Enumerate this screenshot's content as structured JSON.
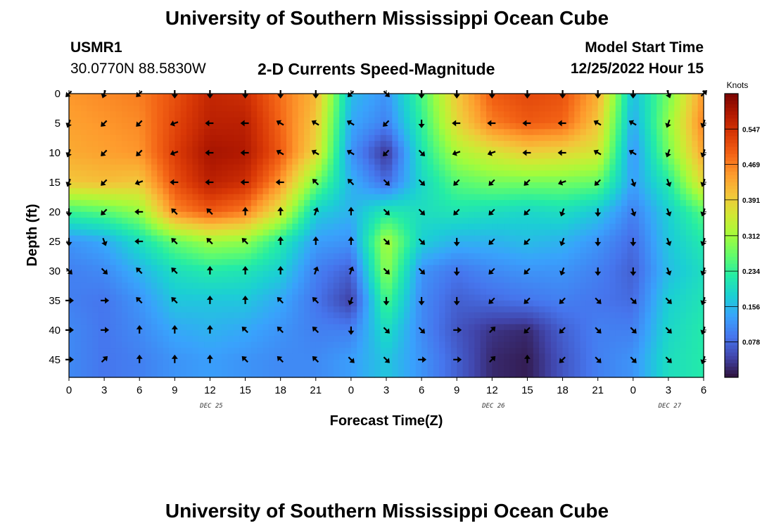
{
  "header": {
    "title": "University of Southern Mississippi Ocean Cube",
    "station_id": "USMR1",
    "station_coords": "30.0770N  88.5830W",
    "plot_subtitle": "2-D Currents Speed-Magnitude",
    "model_start_label": "Model Start Time",
    "model_start_value": "12/25/2022 Hour 15"
  },
  "footer": {
    "title": "University of Southern Mississippi Ocean Cube"
  },
  "chart_data": {
    "type": "heatmap",
    "xlabel": "Forecast Time(Z)",
    "ylabel": "Depth (ft)",
    "x_tick_labels": [
      "0",
      "3",
      "6",
      "9",
      "12",
      "15",
      "18",
      "21",
      "0",
      "3",
      "6",
      "9",
      "12",
      "15",
      "18",
      "21",
      "0",
      "3",
      "6"
    ],
    "date_labels": [
      {
        "label": "DEC 25",
        "at_tick": 4
      },
      {
        "label": "DEC 26",
        "at_tick": 12
      },
      {
        "label": "DEC 27",
        "at_tick": 17
      }
    ],
    "y_ticks": [
      0,
      5,
      10,
      15,
      20,
      25,
      30,
      35,
      40,
      45
    ],
    "depth_range": [
      0,
      48
    ],
    "y_reversed": true,
    "colorbar": {
      "units": "Knots",
      "range": [
        0,
        0.625
      ],
      "tick_values": [
        0.078,
        0.156,
        0.234,
        0.312,
        0.391,
        0.469,
        0.547
      ],
      "tick_labels": [
        "0.078",
        "0.156",
        "0.234",
        "0.312",
        "0.391",
        "0.469",
        "0.547"
      ],
      "colormap": [
        "#30123b",
        "#4145ab",
        "#4675ed",
        "#39a2fc",
        "#1bcfd4",
        "#24eca6",
        "#61fc6c",
        "#a4fc3b",
        "#d1e834",
        "#f3c63a",
        "#fe9b2d",
        "#f36315",
        "#d93806",
        "#b11901",
        "#7a0402"
      ]
    },
    "grid": false,
    "speed_depths_ft": [
      0,
      5,
      10,
      15,
      20,
      25,
      30,
      35,
      40,
      45
    ],
    "speed_knots": [
      [
        0.45,
        0.46,
        0.47,
        0.51,
        0.56,
        0.55,
        0.48,
        0.42,
        0.16,
        0.12,
        0.25,
        0.4,
        0.5,
        0.52,
        0.51,
        0.43,
        0.16,
        0.28,
        0.45
      ],
      [
        0.44,
        0.45,
        0.46,
        0.52,
        0.57,
        0.57,
        0.49,
        0.4,
        0.14,
        0.1,
        0.23,
        0.38,
        0.47,
        0.5,
        0.49,
        0.4,
        0.14,
        0.3,
        0.47
      ],
      [
        0.43,
        0.44,
        0.45,
        0.53,
        0.59,
        0.58,
        0.5,
        0.38,
        0.12,
        0.03,
        0.21,
        0.32,
        0.36,
        0.39,
        0.38,
        0.36,
        0.12,
        0.28,
        0.44
      ],
      [
        0.4,
        0.41,
        0.4,
        0.51,
        0.57,
        0.55,
        0.45,
        0.28,
        0.15,
        0.08,
        0.19,
        0.26,
        0.28,
        0.28,
        0.28,
        0.27,
        0.13,
        0.22,
        0.38
      ],
      [
        0.24,
        0.26,
        0.3,
        0.46,
        0.5,
        0.47,
        0.36,
        0.18,
        0.15,
        0.22,
        0.2,
        0.21,
        0.2,
        0.19,
        0.2,
        0.17,
        0.1,
        0.18,
        0.26
      ],
      [
        0.12,
        0.14,
        0.2,
        0.27,
        0.31,
        0.3,
        0.22,
        0.13,
        0.12,
        0.32,
        0.18,
        0.15,
        0.15,
        0.16,
        0.15,
        0.12,
        0.08,
        0.17,
        0.22
      ],
      [
        0.1,
        0.11,
        0.15,
        0.2,
        0.22,
        0.21,
        0.18,
        0.1,
        0.07,
        0.3,
        0.12,
        0.09,
        0.11,
        0.12,
        0.12,
        0.1,
        0.07,
        0.16,
        0.2
      ],
      [
        0.1,
        0.09,
        0.12,
        0.17,
        0.17,
        0.17,
        0.14,
        0.09,
        0.04,
        0.25,
        0.11,
        0.07,
        0.08,
        0.09,
        0.1,
        0.09,
        0.08,
        0.18,
        0.21
      ],
      [
        0.11,
        0.09,
        0.11,
        0.14,
        0.15,
        0.14,
        0.12,
        0.1,
        0.1,
        0.2,
        0.11,
        0.06,
        0.03,
        0.02,
        0.07,
        0.1,
        0.1,
        0.19,
        0.22
      ],
      [
        0.11,
        0.09,
        0.1,
        0.12,
        0.13,
        0.12,
        0.11,
        0.11,
        0.13,
        0.17,
        0.12,
        0.07,
        0.02,
        0.01,
        0.06,
        0.1,
        0.12,
        0.2,
        0.22
      ]
    ],
    "direction_deg": [
      [
        225,
        200,
        225,
        180,
        180,
        180,
        180,
        180,
        225,
        135,
        180,
        180,
        180,
        180,
        180,
        180,
        180,
        160,
        45
      ],
      [
        200,
        225,
        225,
        250,
        270,
        270,
        300,
        300,
        300,
        225,
        180,
        270,
        270,
        270,
        270,
        300,
        300,
        200,
        200
      ],
      [
        200,
        225,
        225,
        250,
        270,
        270,
        300,
        300,
        300,
        225,
        135,
        250,
        250,
        270,
        270,
        300,
        300,
        200,
        200
      ],
      [
        200,
        225,
        250,
        270,
        270,
        270,
        270,
        315,
        315,
        135,
        135,
        225,
        225,
        225,
        250,
        225,
        160,
        160,
        200
      ],
      [
        180,
        225,
        270,
        315,
        315,
        0,
        0,
        20,
        0,
        135,
        135,
        225,
        225,
        225,
        200,
        180,
        160,
        160,
        200
      ],
      [
        180,
        160,
        270,
        315,
        315,
        315,
        0,
        0,
        0,
        135,
        135,
        180,
        225,
        225,
        200,
        180,
        180,
        160,
        200
      ],
      [
        135,
        135,
        315,
        315,
        0,
        0,
        0,
        20,
        20,
        135,
        135,
        180,
        225,
        225,
        200,
        180,
        180,
        160,
        200
      ],
      [
        90,
        90,
        315,
        315,
        0,
        0,
        315,
        315,
        200,
        180,
        180,
        180,
        225,
        225,
        225,
        135,
        135,
        135,
        200
      ],
      [
        90,
        90,
        0,
        0,
        0,
        315,
        315,
        315,
        180,
        135,
        135,
        90,
        45,
        225,
        225,
        135,
        135,
        135,
        200
      ],
      [
        90,
        45,
        0,
        0,
        0,
        315,
        315,
        315,
        135,
        135,
        90,
        90,
        45,
        0,
        225,
        135,
        135,
        135,
        200
      ]
    ]
  }
}
